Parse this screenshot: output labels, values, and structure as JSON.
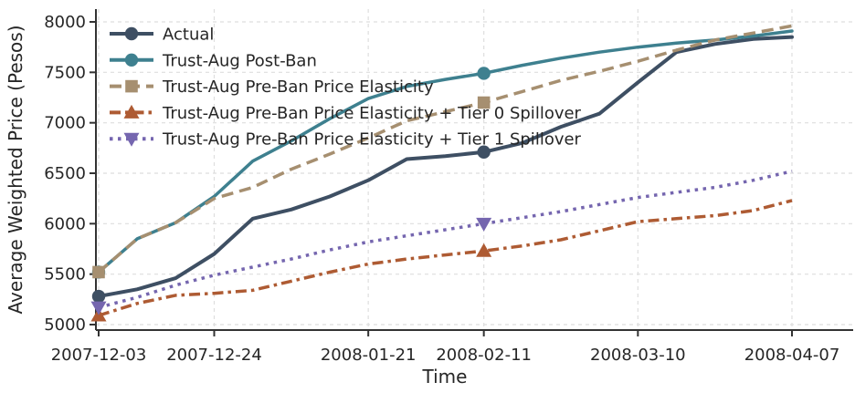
{
  "chart_data": {
    "type": "line",
    "title": "",
    "xlabel": "Time",
    "ylabel": "Average Weighted Price (Pesos)",
    "ylim": [
      5000,
      8000
    ],
    "yticks": [
      5000,
      5500,
      6000,
      6500,
      7000,
      7500,
      8000
    ],
    "x_dates": [
      "2007-12-03",
      "2007-12-10",
      "2007-12-17",
      "2007-12-24",
      "2007-12-31",
      "2008-01-07",
      "2008-01-14",
      "2008-01-21",
      "2008-01-28",
      "2008-02-04",
      "2008-02-11",
      "2008-02-18",
      "2008-02-25",
      "2008-03-03",
      "2008-03-10",
      "2008-03-17",
      "2008-03-24",
      "2008-03-31",
      "2008-04-07"
    ],
    "x_tick_labels": [
      "2007-12-03",
      "2007-12-24",
      "2008-01-21",
      "2008-02-11",
      "2008-03-10",
      "2008-04-07"
    ],
    "x_tick_indices": [
      0,
      3,
      7,
      10,
      14,
      18
    ],
    "grid": true,
    "legend_position": "upper-left",
    "marker_indices": [
      0,
      10
    ],
    "series": [
      {
        "name": "Actual",
        "color": "#3E4F63",
        "style": "solid",
        "marker": "circle",
        "values": [
          5280,
          5350,
          5460,
          5700,
          6050,
          6140,
          6270,
          6430,
          6640,
          6670,
          6710,
          6800,
          6960,
          7090,
          7400,
          7700,
          7780,
          7830,
          7850
        ]
      },
      {
        "name": "Trust-Aug Post-Ban",
        "color": "#3E808F",
        "style": "solid",
        "marker": "circle",
        "values": [
          5520,
          5850,
          6010,
          6270,
          6620,
          6820,
          7040,
          7240,
          7360,
          7430,
          7490,
          7570,
          7640,
          7700,
          7750,
          7790,
          7820,
          7860,
          7910
        ]
      },
      {
        "name": "Trust-Aug Pre-Ban Price Elasticity",
        "color": "#A68F70",
        "style": "dashed",
        "marker": "square",
        "values": [
          5520,
          5850,
          6010,
          6250,
          6360,
          6540,
          6690,
          6850,
          7020,
          7110,
          7200,
          7310,
          7420,
          7510,
          7610,
          7720,
          7820,
          7890,
          7960
        ]
      },
      {
        "name": "Trust-Aug Pre-Ban Price Elasticity + Tier 0 Spillover",
        "color": "#AE5B33",
        "style": "dashdot",
        "marker": "triangle-up",
        "values": [
          5090,
          5210,
          5290,
          5310,
          5340,
          5430,
          5520,
          5600,
          5650,
          5690,
          5730,
          5780,
          5840,
          5930,
          6020,
          6050,
          6080,
          6130,
          6230
        ]
      },
      {
        "name": "Trust-Aug Pre-Ban Price Elasticity + Tier 1 Spillover",
        "color": "#7566AF",
        "style": "dotted",
        "marker": "triangle-down",
        "values": [
          5170,
          5270,
          5390,
          5490,
          5570,
          5650,
          5740,
          5820,
          5880,
          5940,
          6000,
          6060,
          6120,
          6190,
          6260,
          6310,
          6360,
          6430,
          6520
        ]
      }
    ],
    "colors": {
      "text": "#262626",
      "grid": "#dedede",
      "spine": "#333333"
    }
  }
}
